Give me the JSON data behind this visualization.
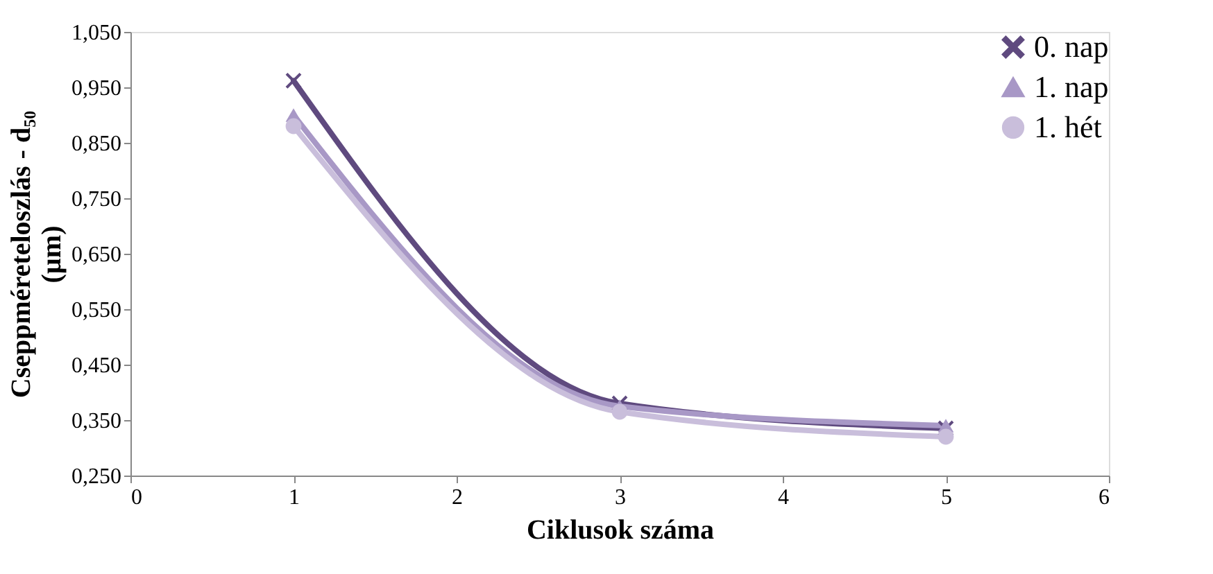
{
  "chart_data": {
    "type": "line",
    "xlabel": "Ciklusok száma",
    "ylabel": "Cseppméreteloszlás - d₅₀ (µm)",
    "xlim": [
      0,
      6
    ],
    "xticks": [
      0,
      1,
      2,
      3,
      4,
      5,
      6
    ],
    "ylim": [
      0.25,
      1.05
    ],
    "yticks": [
      {
        "value": 0.25,
        "label": "0,250"
      },
      {
        "value": 0.35,
        "label": "0,350"
      },
      {
        "value": 0.45,
        "label": "0,450"
      },
      {
        "value": 0.55,
        "label": "0,550"
      },
      {
        "value": 0.65,
        "label": "0,650"
      },
      {
        "value": 0.75,
        "label": "0,750"
      },
      {
        "value": 0.85,
        "label": "0,850"
      },
      {
        "value": 0.95,
        "label": "0,950"
      },
      {
        "value": 1.05,
        "label": "1,050"
      }
    ],
    "x": [
      1,
      3,
      5
    ],
    "grid": false,
    "legend": "top right",
    "line_style": "solid",
    "series": [
      {
        "name": "0. nap",
        "color": "#5f4a7f",
        "marker": "cross",
        "values": [
          0.962,
          0.38,
          0.335
        ]
      },
      {
        "name": "1. nap",
        "color": "#a898c6",
        "marker": "triangle",
        "values": [
          0.9,
          0.375,
          0.34
        ]
      },
      {
        "name": "1. hét",
        "color": "#c9bedb",
        "marker": "circle",
        "values": [
          0.88,
          0.365,
          0.32
        ]
      }
    ]
  }
}
